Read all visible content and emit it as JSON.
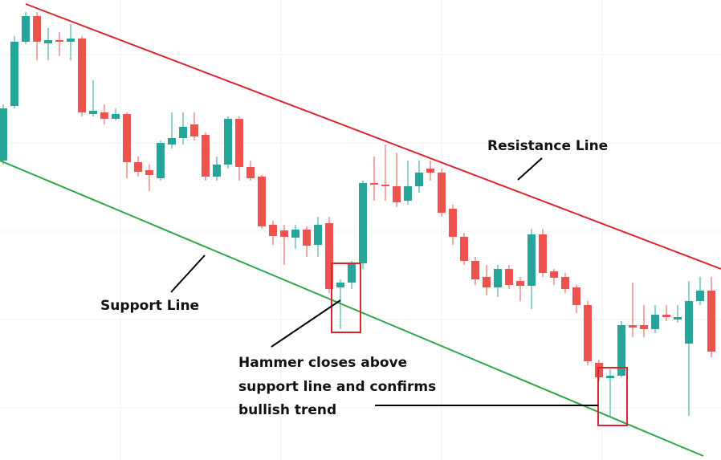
{
  "chart_data": {
    "type": "candlestick",
    "up_color": "#26a69a",
    "down_color": "#ef5350",
    "ylim": [
      0,
      573
    ],
    "open": [
      373,
      441,
      521,
      553,
      519,
      523,
      521,
      525,
      431,
      433,
      425,
      431,
      371,
      361,
      351,
      393,
      401,
      418,
      405,
      353,
      368,
      425,
      365,
      353,
      293,
      286,
      277,
      287,
      268,
      295,
      215,
      221,
      245,
      345,
      343,
      341,
      323,
      341,
      363,
      358,
      313,
      278,
      248,
      228,
      215,
      238,
      223,
      217,
      281,
      235,
      228,
      215,
      193,
      121,
      102,
      105,
      168,
      168,
      163,
      181,
      175,
      145,
      198,
      211
    ],
    "high": [
      443,
      528,
      558,
      558,
      538,
      533,
      543,
      528,
      473,
      443,
      438,
      433,
      378,
      368,
      398,
      433,
      433,
      433,
      408,
      378,
      428,
      428,
      373,
      355,
      298,
      293,
      293,
      291,
      303,
      303,
      225,
      248,
      348,
      378,
      393,
      383,
      373,
      373,
      373,
      363,
      318,
      283,
      253,
      243,
      243,
      243,
      228,
      288,
      288,
      238,
      233,
      218,
      198,
      125,
      113,
      173,
      221,
      193,
      193,
      193,
      193,
      223,
      228,
      228
    ],
    "low": [
      368,
      438,
      518,
      498,
      498,
      503,
      498,
      428,
      428,
      418,
      423,
      351,
      353,
      335,
      348,
      388,
      393,
      398,
      348,
      348,
      363,
      348,
      348,
      288,
      268,
      243,
      263,
      253,
      253,
      208,
      163,
      213,
      238,
      323,
      323,
      315,
      318,
      333,
      348,
      303,
      268,
      243,
      218,
      205,
      203,
      213,
      198,
      188,
      228,
      218,
      208,
      183,
      118,
      98,
      53,
      103,
      153,
      153,
      158,
      173,
      171,
      55,
      193,
      128
    ],
    "close": [
      438,
      521,
      553,
      521,
      523,
      521,
      525,
      433,
      435,
      425,
      431,
      371,
      359,
      355,
      395,
      401,
      415,
      403,
      353,
      368,
      425,
      365,
      351,
      291,
      279,
      278,
      287,
      267,
      293,
      213,
      221,
      245,
      345,
      343,
      341,
      321,
      341,
      358,
      358,
      308,
      278,
      248,
      225,
      215,
      238,
      218,
      217,
      281,
      233,
      227,
      213,
      193,
      123,
      103,
      105,
      168,
      165,
      163,
      181,
      178,
      178,
      198,
      211,
      135
    ],
    "annotations": [
      "Resistance Line",
      "Support Line",
      "Hammer closes above",
      "support line and confirms",
      "bullish trend"
    ]
  }
}
